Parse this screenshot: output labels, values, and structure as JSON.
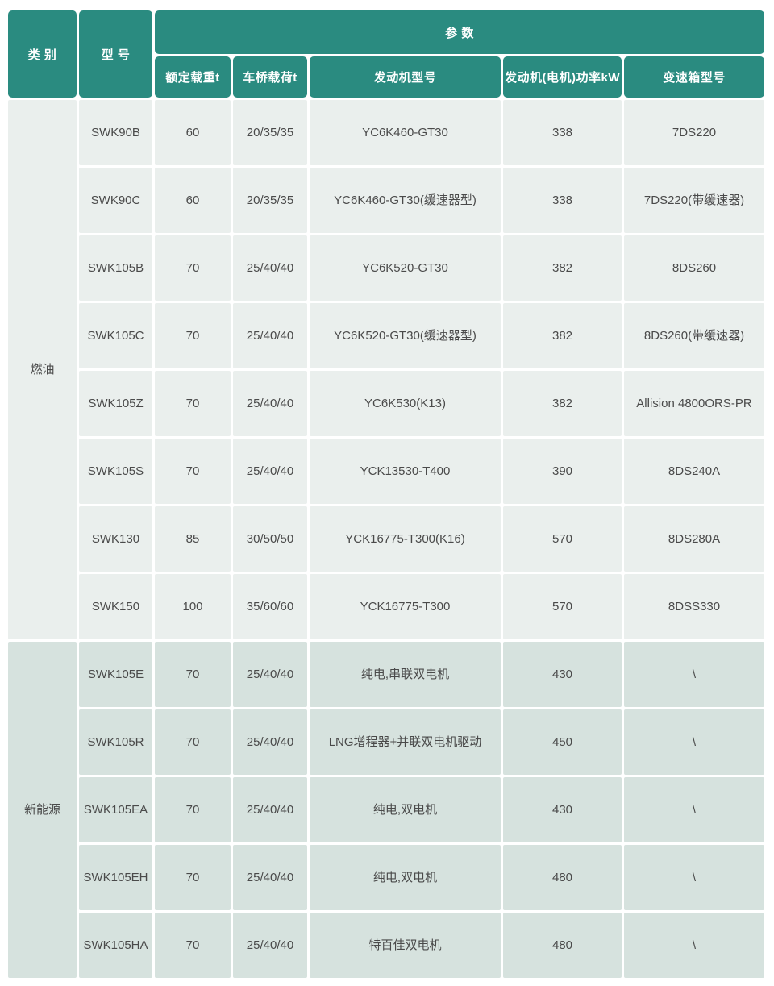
{
  "header": {
    "category": "类 别",
    "model": "型 号",
    "params": "参 数",
    "sub": [
      "额定载重t",
      "车桥载荷t",
      "发动机型号",
      "发动机(电机)功率kW",
      "变速箱型号"
    ]
  },
  "groups": {
    "fuel": "燃油",
    "new_energy": "新能源"
  },
  "rows": [
    {
      "model": "SWK90B",
      "load": "60",
      "axle": "20/35/35",
      "engine": "YC6K460-GT30",
      "power": "338",
      "gearbox": "7DS220"
    },
    {
      "model": "SWK90C",
      "load": "60",
      "axle": "20/35/35",
      "engine": "YC6K460-GT30(缓速器型)",
      "power": "338",
      "gearbox": "7DS220(带缓速器)"
    },
    {
      "model": "SWK105B",
      "load": "70",
      "axle": "25/40/40",
      "engine": "YC6K520-GT30",
      "power": "382",
      "gearbox": "8DS260"
    },
    {
      "model": "SWK105C",
      "load": "70",
      "axle": "25/40/40",
      "engine": "YC6K520-GT30(缓速器型)",
      "power": "382",
      "gearbox": "8DS260(带缓速器)"
    },
    {
      "model": "SWK105Z",
      "load": "70",
      "axle": "25/40/40",
      "engine": "YC6K530(K13)",
      "power": "382",
      "gearbox": "Allision 4800ORS-PR"
    },
    {
      "model": "SWK105S",
      "load": "70",
      "axle": "25/40/40",
      "engine": "YCK13530-T400",
      "power": "390",
      "gearbox": "8DS240A"
    },
    {
      "model": "SWK130",
      "load": "85",
      "axle": "30/50/50",
      "engine": "YCK16775-T300(K16)",
      "power": "570",
      "gearbox": "8DS280A"
    },
    {
      "model": "SWK150",
      "load": "100",
      "axle": "35/60/60",
      "engine": "YCK16775-T300",
      "power": "570",
      "gearbox": "8DSS330"
    },
    {
      "model": "SWK105E",
      "load": "70",
      "axle": "25/40/40",
      "engine": "纯电,串联双电机",
      "power": "430",
      "gearbox": "\\"
    },
    {
      "model": "SWK105R",
      "load": "70",
      "axle": "25/40/40",
      "engine": "LNG增程器+并联双电机驱动",
      "power": "450",
      "gearbox": "\\"
    },
    {
      "model": "SWK105EA",
      "load": "70",
      "axle": "25/40/40",
      "engine": "纯电,双电机",
      "power": "430",
      "gearbox": "\\"
    },
    {
      "model": "SWK105EH",
      "load": "70",
      "axle": "25/40/40",
      "engine": "纯电,双电机",
      "power": "480",
      "gearbox": "\\"
    },
    {
      "model": "SWK105HA",
      "load": "70",
      "axle": "25/40/40",
      "engine": "特百佳双电机",
      "power": "480",
      "gearbox": "\\"
    }
  ],
  "colors": {
    "header_bg": "#2a8b80",
    "fuel_row_bg": "#eaefed",
    "new_energy_row_bg": "#d6e2de",
    "text": "#4a4a4a"
  }
}
